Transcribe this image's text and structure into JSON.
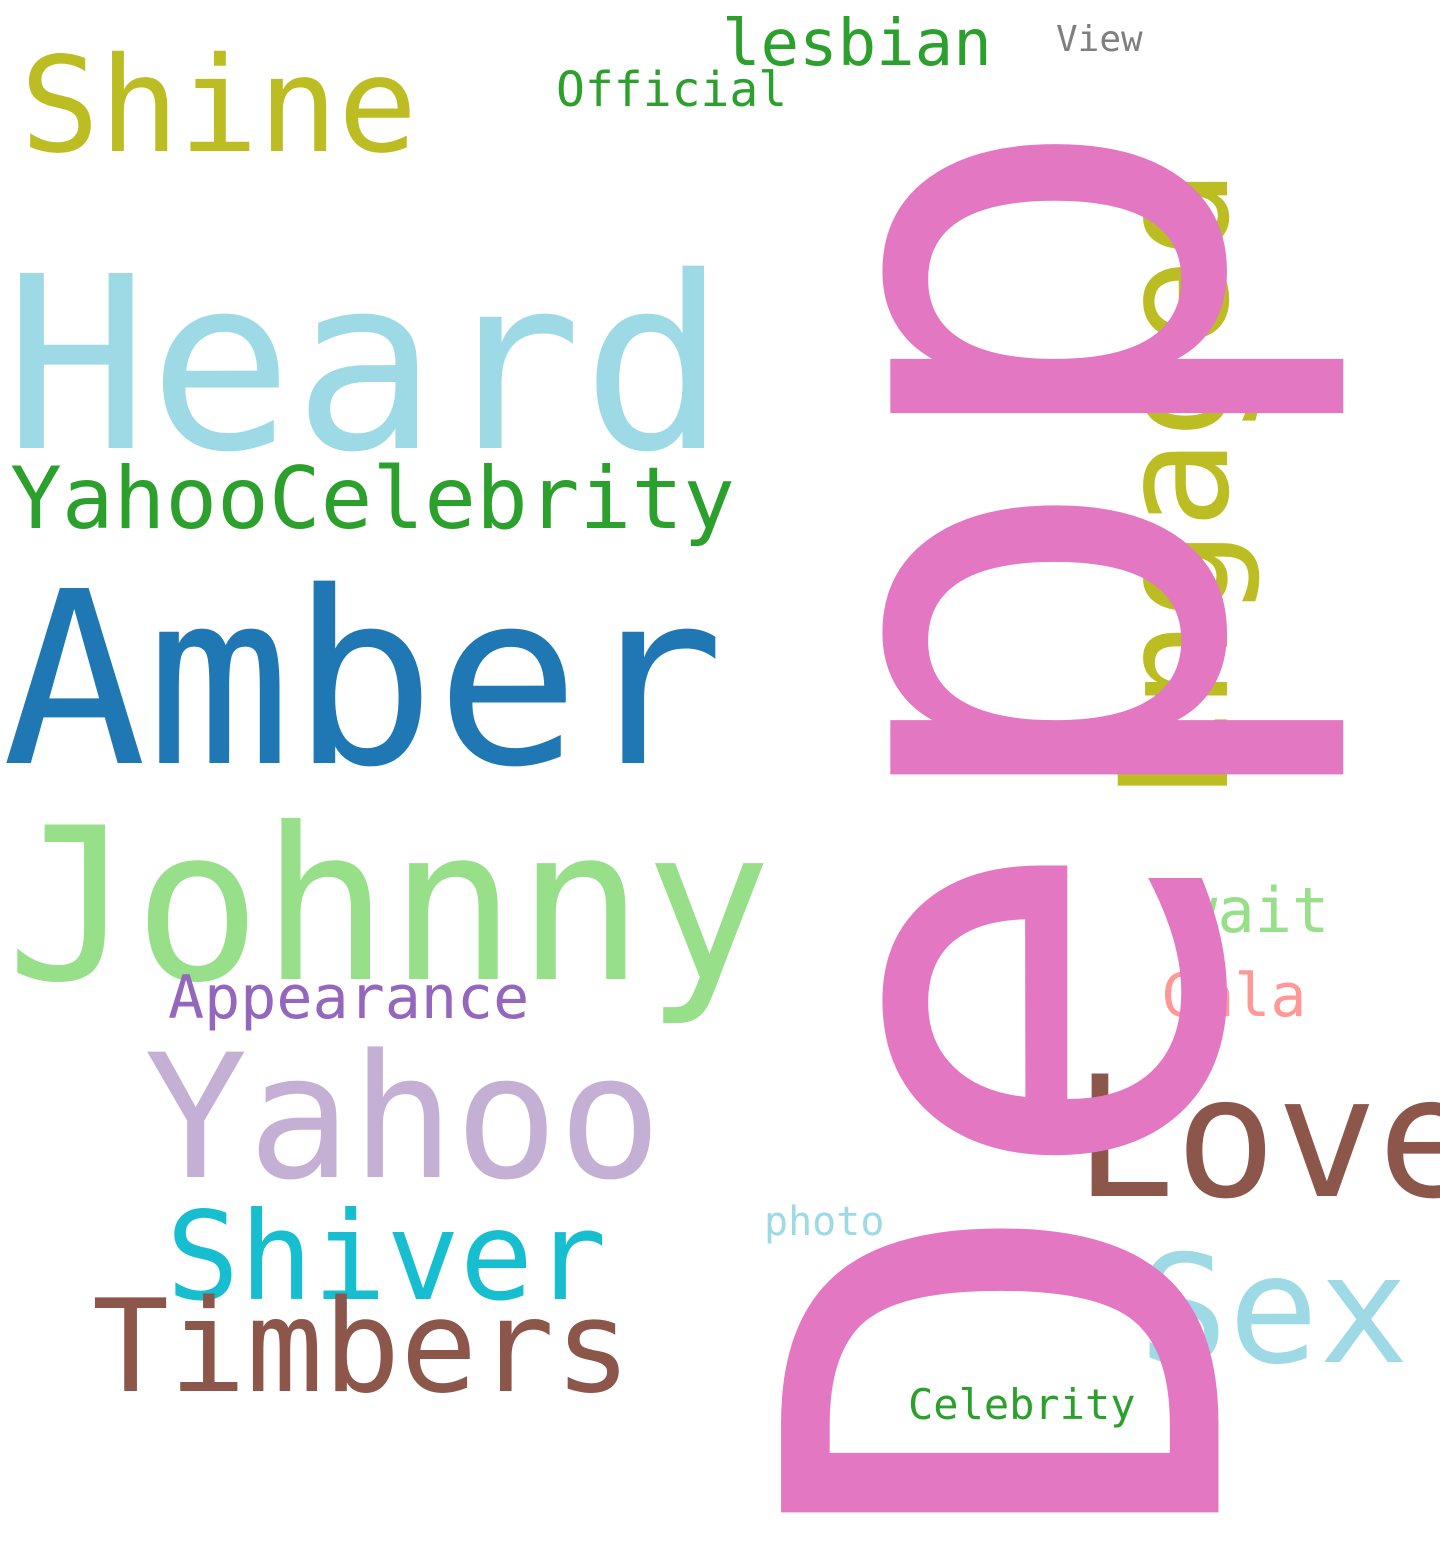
{
  "words": {
    "depp": {
      "text": "Depp",
      "color": "#e377c2"
    },
    "heard": {
      "text": "Heard",
      "color": "#9edae5"
    },
    "amber": {
      "text": "Amber",
      "color": "#1f77b4"
    },
    "johnny": {
      "text": "Johnny",
      "color": "#98df8a"
    },
    "engaged": {
      "text": "Engaged",
      "color": "#bcbd22"
    },
    "shine": {
      "text": "Shine",
      "color": "#bcbd22"
    },
    "yahoo": {
      "text": "Yahoo",
      "color": "#c5b0d5"
    },
    "love": {
      "text": "Love",
      "color": "#8c564b"
    },
    "yahoocelebrity": {
      "text": "YahooCelebrity",
      "color": "#2ca02c"
    },
    "shiver": {
      "text": "Shiver",
      "color": "#17becf"
    },
    "timbers": {
      "text": "Timbers",
      "color": "#8c564b"
    },
    "sex": {
      "text": "Sex",
      "color": "#9edae5"
    },
    "lesbian": {
      "text": "lesbian",
      "color": "#2ca02c"
    },
    "official": {
      "text": "Official",
      "color": "#2ca02c"
    },
    "view": {
      "text": "View",
      "color": "#7f7f7f"
    },
    "wait": {
      "text": "wait",
      "color": "#98df8a"
    },
    "appearance": {
      "text": "Appearance",
      "color": "#9467bd"
    },
    "gala": {
      "text": "Gala",
      "color": "#ff9896"
    },
    "photo": {
      "text": "photo",
      "color": "#9edae5"
    },
    "celebrity": {
      "text": "Celebrity",
      "color": "#2ca02c"
    }
  }
}
